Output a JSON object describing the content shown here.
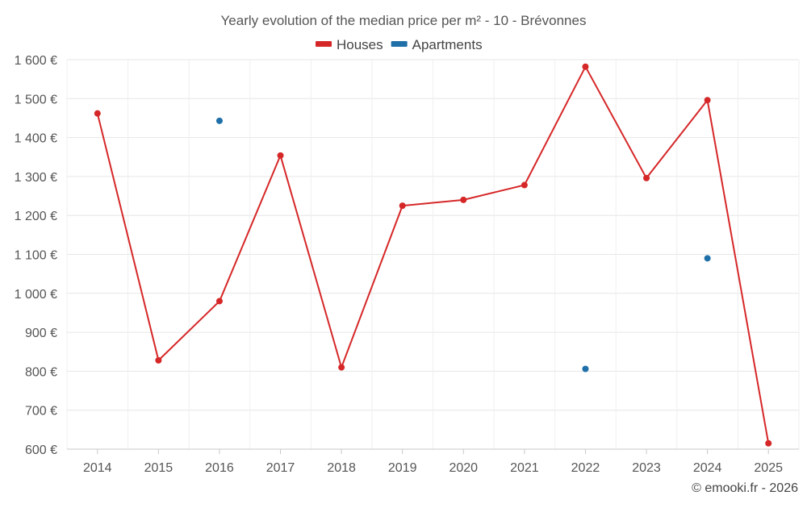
{
  "chart_data": {
    "type": "line",
    "title": "Yearly evolution of the median price per m² - 10 - Brévonnes",
    "categories": [
      "2014",
      "2015",
      "2016",
      "2017",
      "2018",
      "2019",
      "2020",
      "2021",
      "2022",
      "2023",
      "2024",
      "2025"
    ],
    "y_ticks": [
      "600 €",
      "700 €",
      "800 €",
      "900 €",
      "1 000 €",
      "1 100 €",
      "1 200 €",
      "1 300 €",
      "1 400 €",
      "1 500 €",
      "1 600 €"
    ],
    "ylim": [
      600,
      1600
    ],
    "ystep": 100,
    "grid": true,
    "legend_position": "top-center",
    "series": [
      {
        "name": "Houses",
        "color": "#d62728",
        "style": "line-with-markers",
        "values": [
          1462,
          828,
          980,
          1354,
          810,
          1225,
          1240,
          1278,
          1582,
          1296,
          1496,
          615
        ]
      },
      {
        "name": "Apartments",
        "color": "#1f6fa8",
        "style": "markers",
        "values": [
          null,
          null,
          1443,
          null,
          null,
          null,
          null,
          null,
          806,
          null,
          1090,
          null
        ]
      }
    ],
    "credit": "© emooki.fr - 2026"
  }
}
